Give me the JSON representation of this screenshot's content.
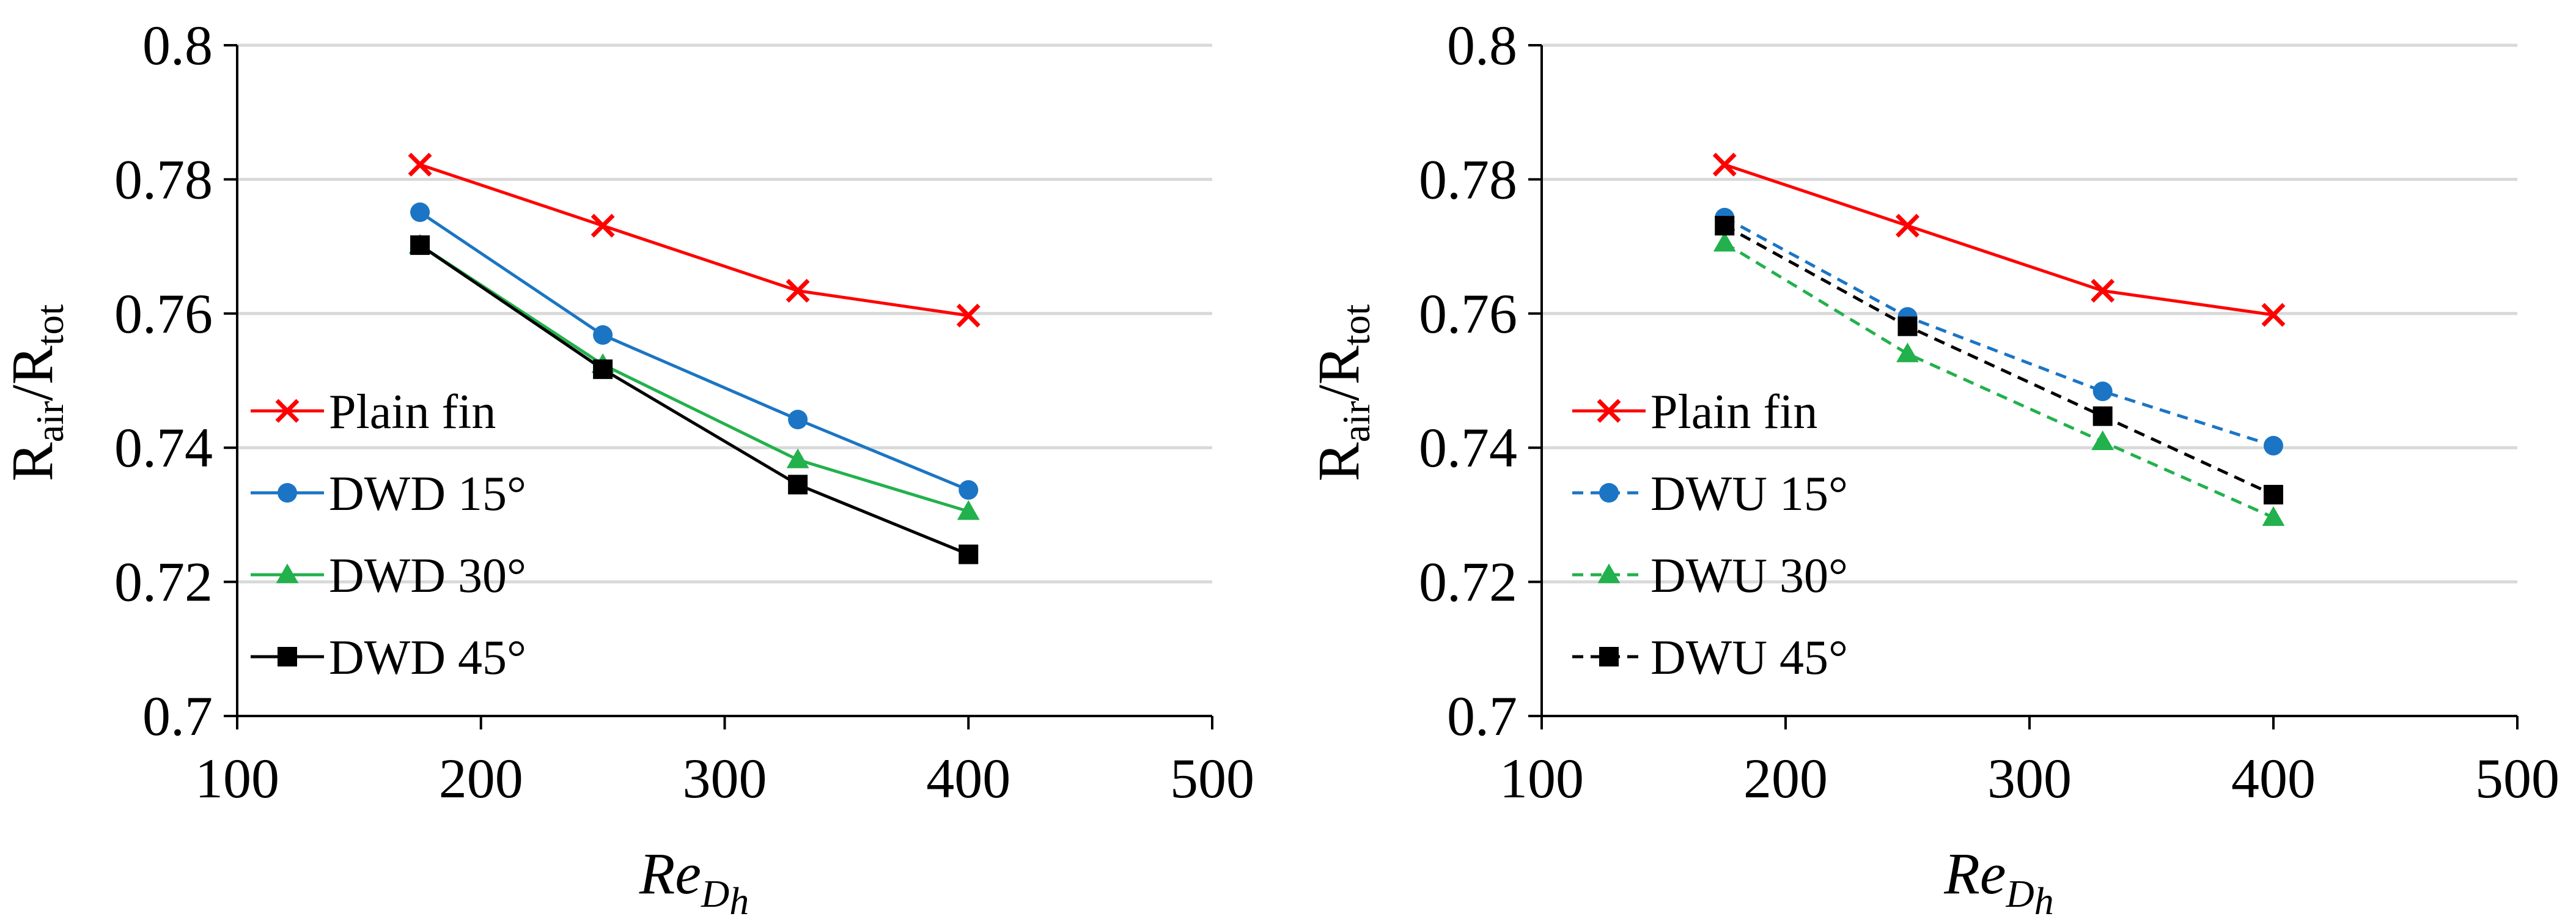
{
  "chart_data": [
    {
      "type": "line",
      "panel": "left",
      "x": [
        175,
        250,
        330,
        400
      ],
      "xlim": [
        100,
        500
      ],
      "ylim": [
        0.7,
        0.8
      ],
      "xticks": [
        "100",
        "200",
        "300",
        "400",
        "500"
      ],
      "yticks": [
        "0.7",
        "0.72",
        "0.74",
        "0.76",
        "0.78",
        "0.8"
      ],
      "ylabel": {
        "main1": "R",
        "sub1": "air",
        "slash": "/R",
        "sub2": "tot"
      },
      "xlabel": {
        "main": "Re",
        "sub": "D",
        "subsub": "h"
      },
      "grid": "horizontal",
      "legend_position": "left",
      "series": [
        {
          "name": "Plain fin",
          "values": [
            0.7822,
            0.7731,
            0.7634,
            0.7597
          ],
          "color": "#ff0000",
          "marker": "x",
          "dash": "solid"
        },
        {
          "name": "DWD 15°",
          "values": [
            0.7751,
            0.7568,
            0.7442,
            0.7337
          ],
          "color": "#1b75c4",
          "marker": "circle",
          "dash": "solid"
        },
        {
          "name": "DWD 30°",
          "values": [
            0.7702,
            0.7524,
            0.7382,
            0.7305
          ],
          "color": "#22b14c",
          "marker": "triangle",
          "dash": "solid"
        },
        {
          "name": "DWD 45°",
          "values": [
            0.7702,
            0.7517,
            0.7345,
            0.7241
          ],
          "color": "#000000",
          "marker": "square",
          "dash": "solid"
        }
      ]
    },
    {
      "type": "line",
      "panel": "right",
      "x": [
        175,
        250,
        330,
        400
      ],
      "xlim": [
        100,
        500
      ],
      "ylim": [
        0.7,
        0.8
      ],
      "xticks": [
        "100",
        "200",
        "300",
        "400",
        "500"
      ],
      "yticks": [
        "0.7",
        "0.72",
        "0.74",
        "0.76",
        "0.78",
        "0.8"
      ],
      "ylabel": {
        "main1": "R",
        "sub1": "air",
        "slash": "/R",
        "sub2": "tot"
      },
      "xlabel": {
        "main": "Re",
        "sub": "D",
        "subsub": "h"
      },
      "grid": "horizontal",
      "legend_position": "left",
      "series": [
        {
          "name": "Plain fin",
          "values": [
            0.7822,
            0.7731,
            0.7634,
            0.7598
          ],
          "color": "#ff0000",
          "marker": "x",
          "dash": "solid"
        },
        {
          "name": "DWU 15°",
          "values": [
            0.7743,
            0.7595,
            0.7484,
            0.7403
          ],
          "color": "#1b75c4",
          "marker": "circle",
          "dash": "dashed"
        },
        {
          "name": "DWU 30°",
          "values": [
            0.7705,
            0.754,
            0.7409,
            0.7296
          ],
          "color": "#22b14c",
          "marker": "triangle",
          "dash": "dashed"
        },
        {
          "name": "DWU 45°",
          "values": [
            0.7731,
            0.7581,
            0.7447,
            0.733
          ],
          "color": "#000000",
          "marker": "square",
          "dash": "dashed"
        }
      ]
    }
  ]
}
